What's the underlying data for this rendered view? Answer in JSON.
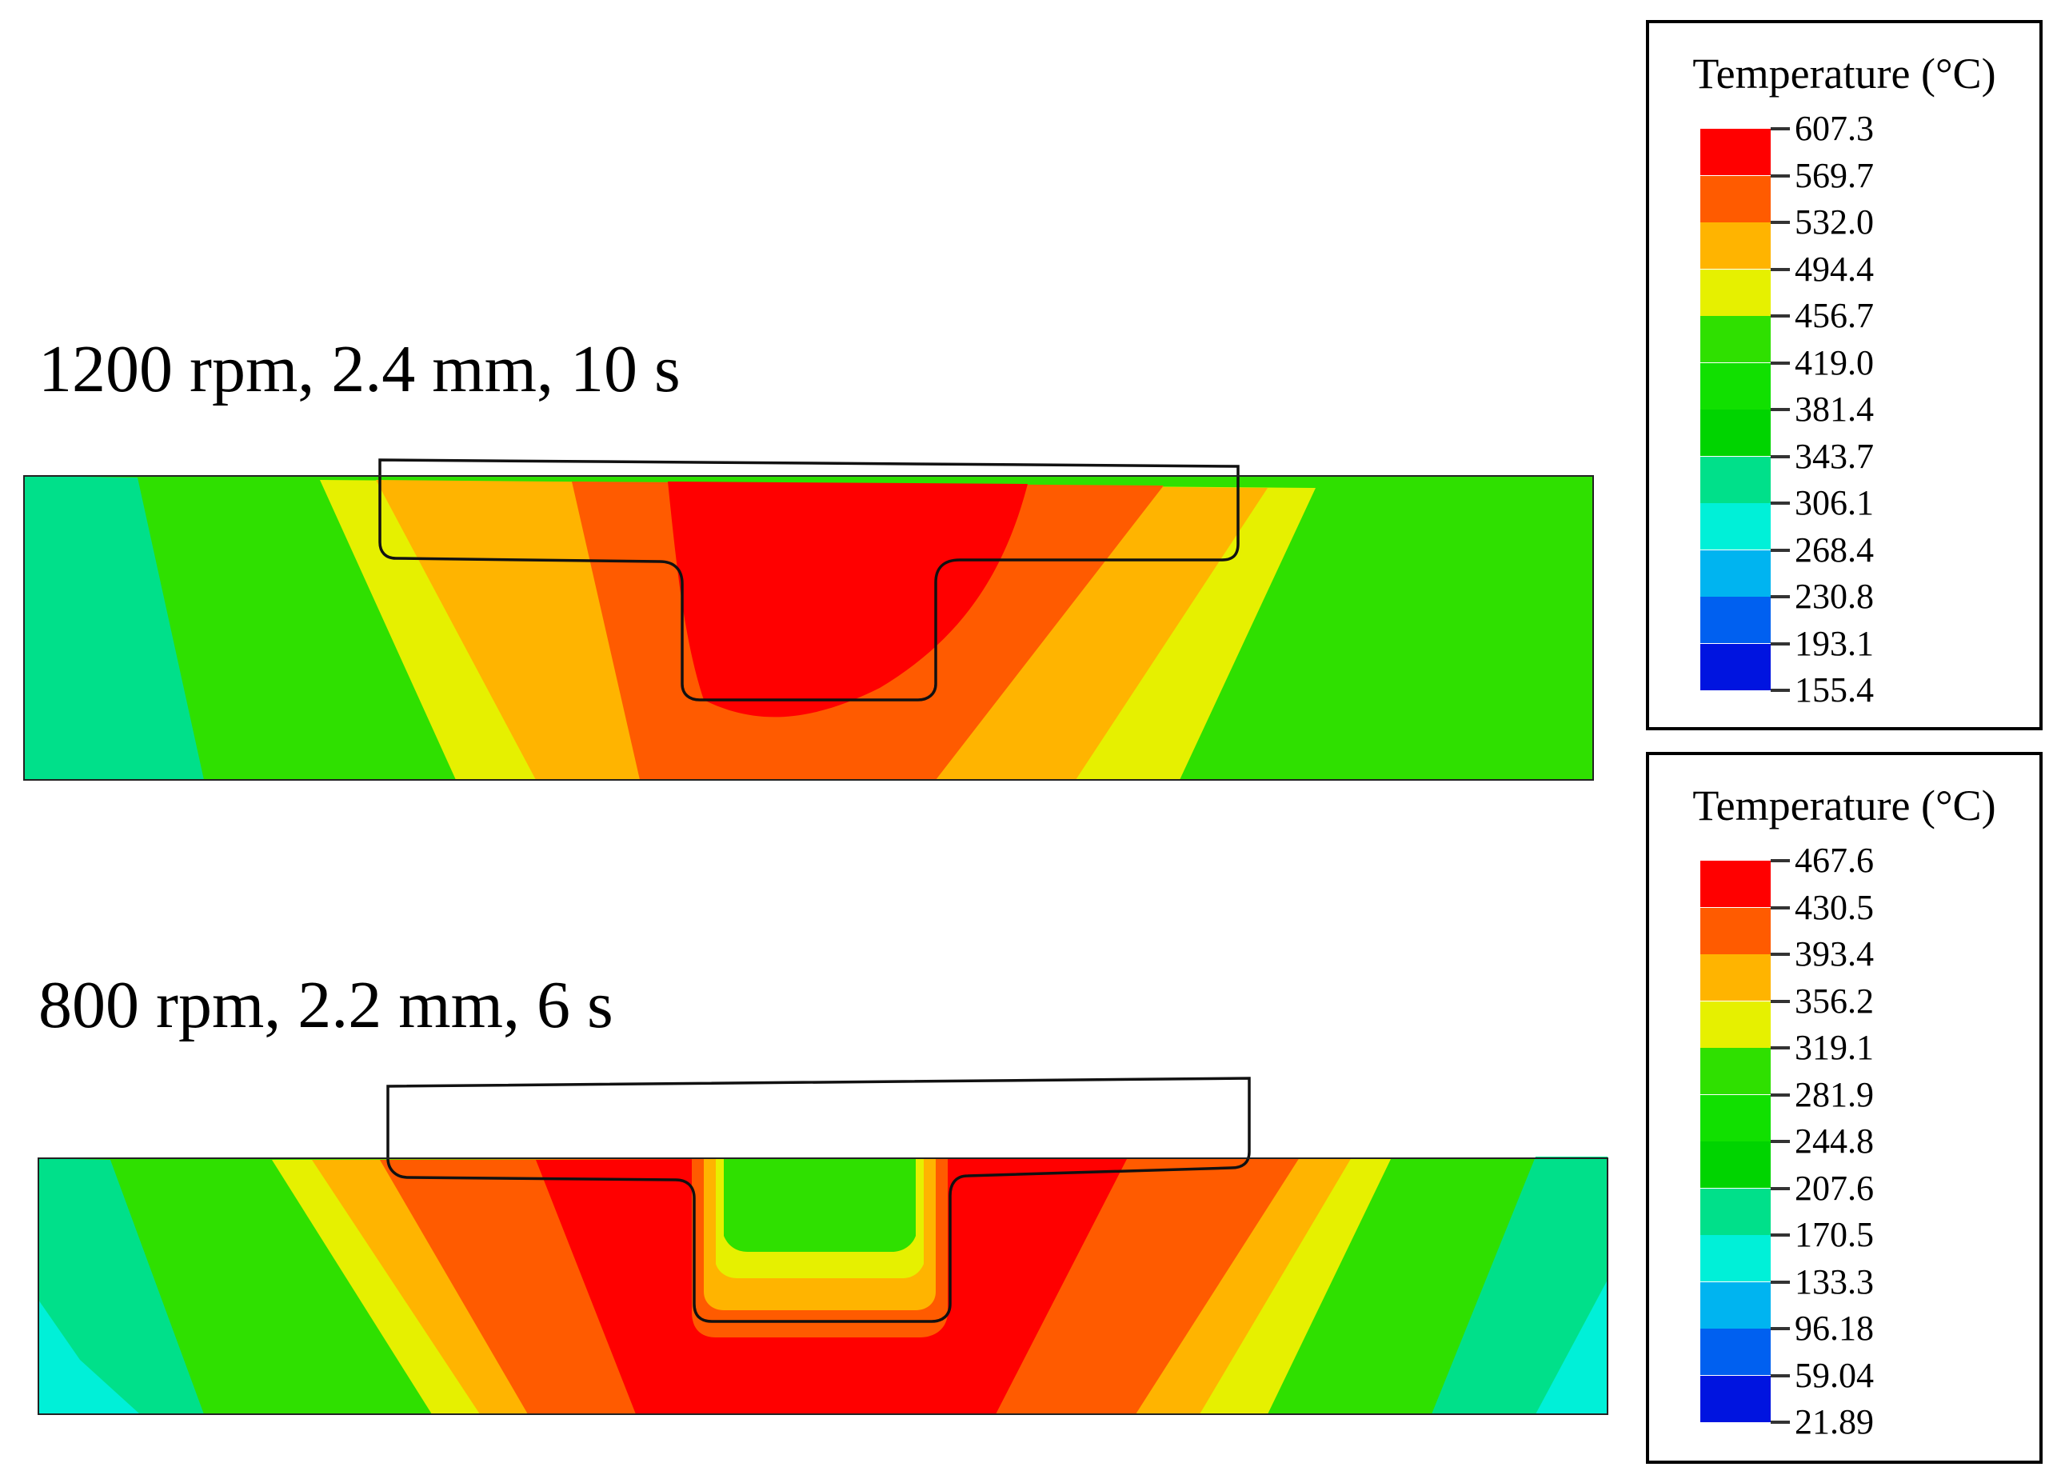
{
  "cases": [
    {
      "label": "1200 rpm, 2.4 mm, 10 s"
    },
    {
      "label": "800 rpm, 2.2 mm, 6 s"
    }
  ],
  "legends": [
    {
      "title": "Temperature (°C)",
      "ticks": [
        "607.3",
        "569.7",
        "532.0",
        "494.4",
        "456.7",
        "419.0",
        "381.4",
        "343.7",
        "306.1",
        "268.4",
        "230.8",
        "193.1",
        "155.4"
      ]
    },
    {
      "title": "Temperature (°C)",
      "ticks": [
        "467.6",
        "430.5",
        "393.4",
        "356.2",
        "319.1",
        "281.9",
        "244.8",
        "207.6",
        "170.5",
        "133.3",
        "96.18",
        "59.04",
        "21.89"
      ]
    }
  ],
  "colors": {
    "band_top_to_bottom": [
      "#ff0000",
      "#ff5b00",
      "#ffb400",
      "#e6f000",
      "#2fe000",
      "#11e000",
      "#00d400",
      "#00e08a",
      "#00f0d8",
      "#00b4f0",
      "#0060f0",
      "#0014e0"
    ]
  }
}
